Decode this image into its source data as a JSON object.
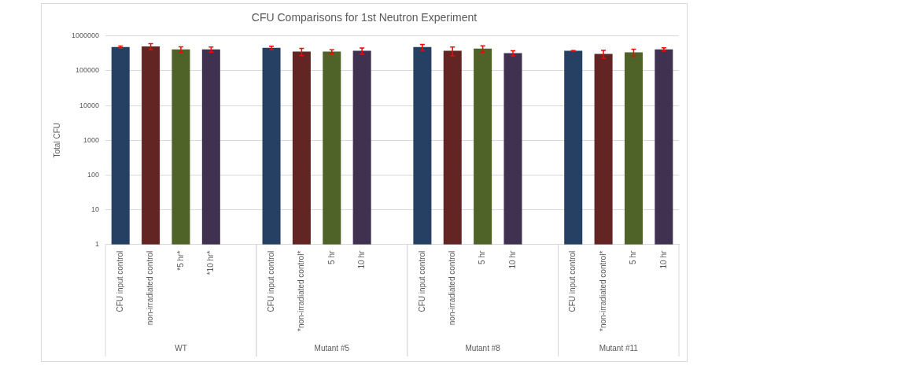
{
  "chart_data": {
    "type": "bar",
    "title": "CFU Comparisons for 1st Neutron Experiment",
    "ylabel": "Total CFU",
    "categories": [
      "CFU input control",
      "non-irradiated control",
      "*5 hr*",
      "*10 hr*",
      null,
      "CFU input control",
      "*non-irradiated control*",
      "5 hr",
      "10 hr",
      null,
      "CFU input control",
      "non-irradiated control",
      "5 hr",
      "10 hr",
      null,
      "CFU input control",
      "*non-irradiated control*",
      "5 hr",
      "10 hr"
    ],
    "values": [
      480000,
      503000,
      414000,
      414000,
      null,
      457000,
      357000,
      357000,
      375000,
      null,
      480000,
      375000,
      435000,
      324000,
      null,
      375000,
      308000,
      340000,
      414000
    ],
    "errors": [
      35000,
      100000,
      75000,
      70000,
      null,
      55000,
      85000,
      48000,
      77000,
      null,
      93000,
      108000,
      90000,
      55000,
      null,
      8000,
      78000,
      78000,
      43000
    ],
    "colors": [
      "#264064",
      "#632523",
      "#4f6228",
      "#403151",
      null,
      "#264064",
      "#632523",
      "#4f6228",
      "#403151",
      null,
      "#264064",
      "#632523",
      "#4f6228",
      "#403151",
      null,
      "#264064",
      "#632523",
      "#4f6228",
      "#403151"
    ],
    "annotations": [
      "WT",
      "Mutant #5",
      "Mutant #8",
      "Mutant #11"
    ],
    "ylim": [
      1,
      1000000
    ],
    "yticks": [
      1,
      10,
      100,
      1000,
      10000,
      100000,
      1000000
    ],
    "log": true,
    "grid": "y",
    "legend": false
  }
}
